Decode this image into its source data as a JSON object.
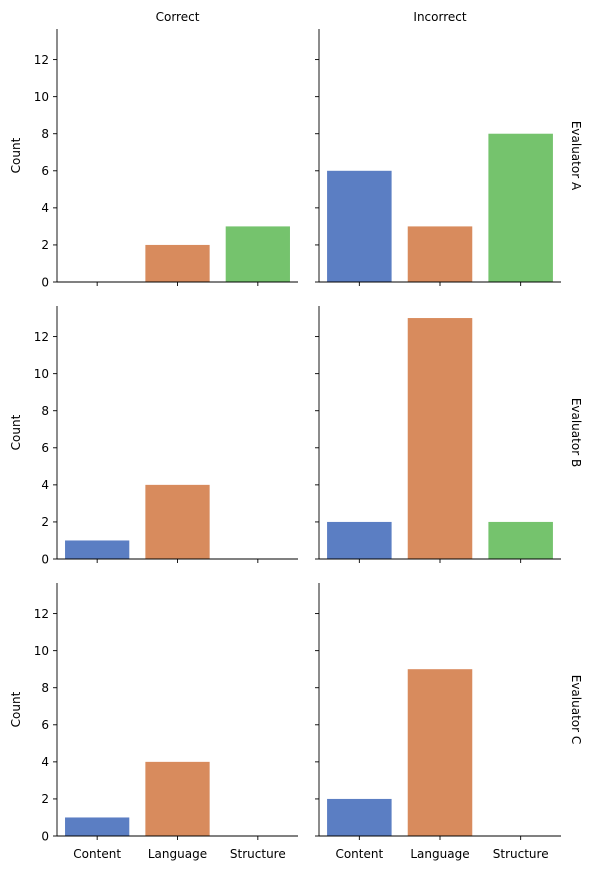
{
  "chart_data": {
    "type": "bar",
    "layout": "facet-grid",
    "col_titles": [
      "Correct",
      "Incorrect"
    ],
    "row_titles": [
      "Evaluator A",
      "Evaluator B",
      "Evaluator C"
    ],
    "categories": [
      "Content",
      "Language",
      "Structure"
    ],
    "ylabel": "Count",
    "xlabel": "",
    "ylim": [
      0,
      13.65
    ],
    "yticks": [
      0,
      2,
      4,
      6,
      8,
      10,
      12
    ],
    "colors": [
      "#5b7ec3",
      "#d88b5d",
      "#75c36d"
    ],
    "panels": [
      {
        "row": "Evaluator A",
        "col": "Correct",
        "values": [
          0,
          2,
          3
        ]
      },
      {
        "row": "Evaluator A",
        "col": "Incorrect",
        "values": [
          6,
          3,
          8
        ]
      },
      {
        "row": "Evaluator B",
        "col": "Correct",
        "values": [
          1,
          4,
          0
        ]
      },
      {
        "row": "Evaluator B",
        "col": "Incorrect",
        "values": [
          2,
          13,
          2
        ]
      },
      {
        "row": "Evaluator C",
        "col": "Correct",
        "values": [
          1,
          4,
          0
        ]
      },
      {
        "row": "Evaluator C",
        "col": "Incorrect",
        "values": [
          2,
          9,
          0
        ]
      }
    ],
    "grid": false,
    "legend": "none"
  }
}
